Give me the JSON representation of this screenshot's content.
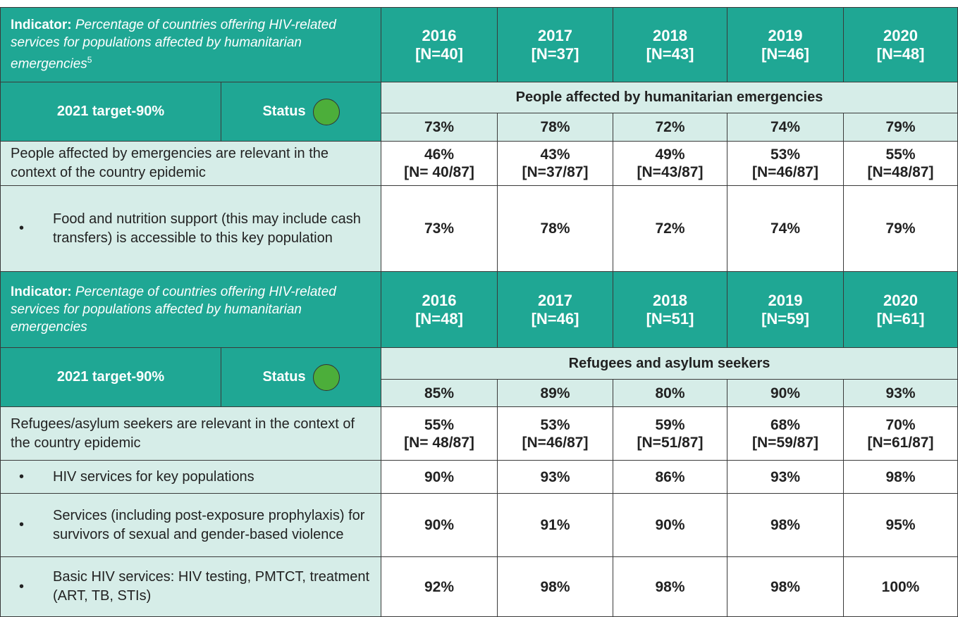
{
  "sections": [
    {
      "indicator_label": "Indicator:",
      "indicator_text": "Percentage of countries offering HIV-related services for populations affected by humanitarian emergencies",
      "footnote": "5",
      "years": [
        {
          "year": "2016",
          "n": "[N=40]"
        },
        {
          "year": "2017",
          "n": "[N=37]"
        },
        {
          "year": "2018",
          "n": "[N=43]"
        },
        {
          "year": "2019",
          "n": "[N=46]"
        },
        {
          "year": "2020",
          "n": "[N=48]"
        }
      ],
      "target": "2021 target-90%",
      "status": "Status",
      "population": "People affected by humanitarian emergencies",
      "overall": [
        "73%",
        "78%",
        "72%",
        "74%",
        "79%"
      ],
      "rows": [
        {
          "label": "People affected by emergencies are relevant in the context of the country epidemic",
          "values": [
            {
              "value": "46%",
              "n": "[N= 40/87]"
            },
            {
              "value": "43%",
              "n": "[N=37/87]"
            },
            {
              "value": "49%",
              "n": "[N=43/87]"
            },
            {
              "value": "53%",
              "n": "[N=46/87]"
            },
            {
              "value": "55%",
              "n": "[N=48/87]"
            }
          ]
        },
        {
          "bullet": "•",
          "label": "Food and nutrition support (this may include cash transfers) is accessible to this key population",
          "values": [
            {
              "value": "73%"
            },
            {
              "value": "78%"
            },
            {
              "value": "72%"
            },
            {
              "value": "74%"
            },
            {
              "value": "79%"
            }
          ]
        }
      ]
    },
    {
      "indicator_label": "Indicator:",
      "indicator_text": "Percentage of countries offering HIV-related services for populations affected by humanitarian emergencies",
      "years": [
        {
          "year": "2016",
          "n": "[N=48]"
        },
        {
          "year": "2017",
          "n": "[N=46]"
        },
        {
          "year": "2018",
          "n": "[N=51]"
        },
        {
          "year": "2019",
          "n": "[N=59]"
        },
        {
          "year": "2020",
          "n": "[N=61]"
        }
      ],
      "target": "2021 target-90%",
      "status": "Status",
      "population": "Refugees and asylum seekers",
      "overall": [
        "85%",
        "89%",
        "80%",
        "90%",
        "93%"
      ],
      "rows": [
        {
          "label": "Refugees/asylum seekers are relevant in the context of the country epidemic",
          "values": [
            {
              "value": "55%",
              "n": "[N= 48/87]"
            },
            {
              "value": "53%",
              "n": "[N=46/87]"
            },
            {
              "value": "59%",
              "n": "[N=51/87]"
            },
            {
              "value": "68%",
              "n": "[N=59/87]"
            },
            {
              "value": "70%",
              "n": "[N=61/87]"
            }
          ]
        },
        {
          "bullet": "•",
          "label": "HIV services for key populations",
          "values": [
            {
              "value": "90%"
            },
            {
              "value": "93%"
            },
            {
              "value": "86%"
            },
            {
              "value": "93%"
            },
            {
              "value": "98%"
            }
          ]
        },
        {
          "bullet": "•",
          "label": "Services (including post-exposure prophylaxis) for survivors of sexual and gender-based violence",
          "values": [
            {
              "value": "90%"
            },
            {
              "value": "91%"
            },
            {
              "value": "90%"
            },
            {
              "value": "98%"
            },
            {
              "value": "95%"
            }
          ]
        },
        {
          "bullet": "•",
          "label": "Basic HIV services: HIV testing, PMTCT, treatment (ART, TB, STIs)",
          "values": [
            {
              "value": "92%"
            },
            {
              "value": "98%"
            },
            {
              "value": "98%"
            },
            {
              "value": "98%"
            },
            {
              "value": "100%"
            }
          ]
        }
      ]
    }
  ]
}
